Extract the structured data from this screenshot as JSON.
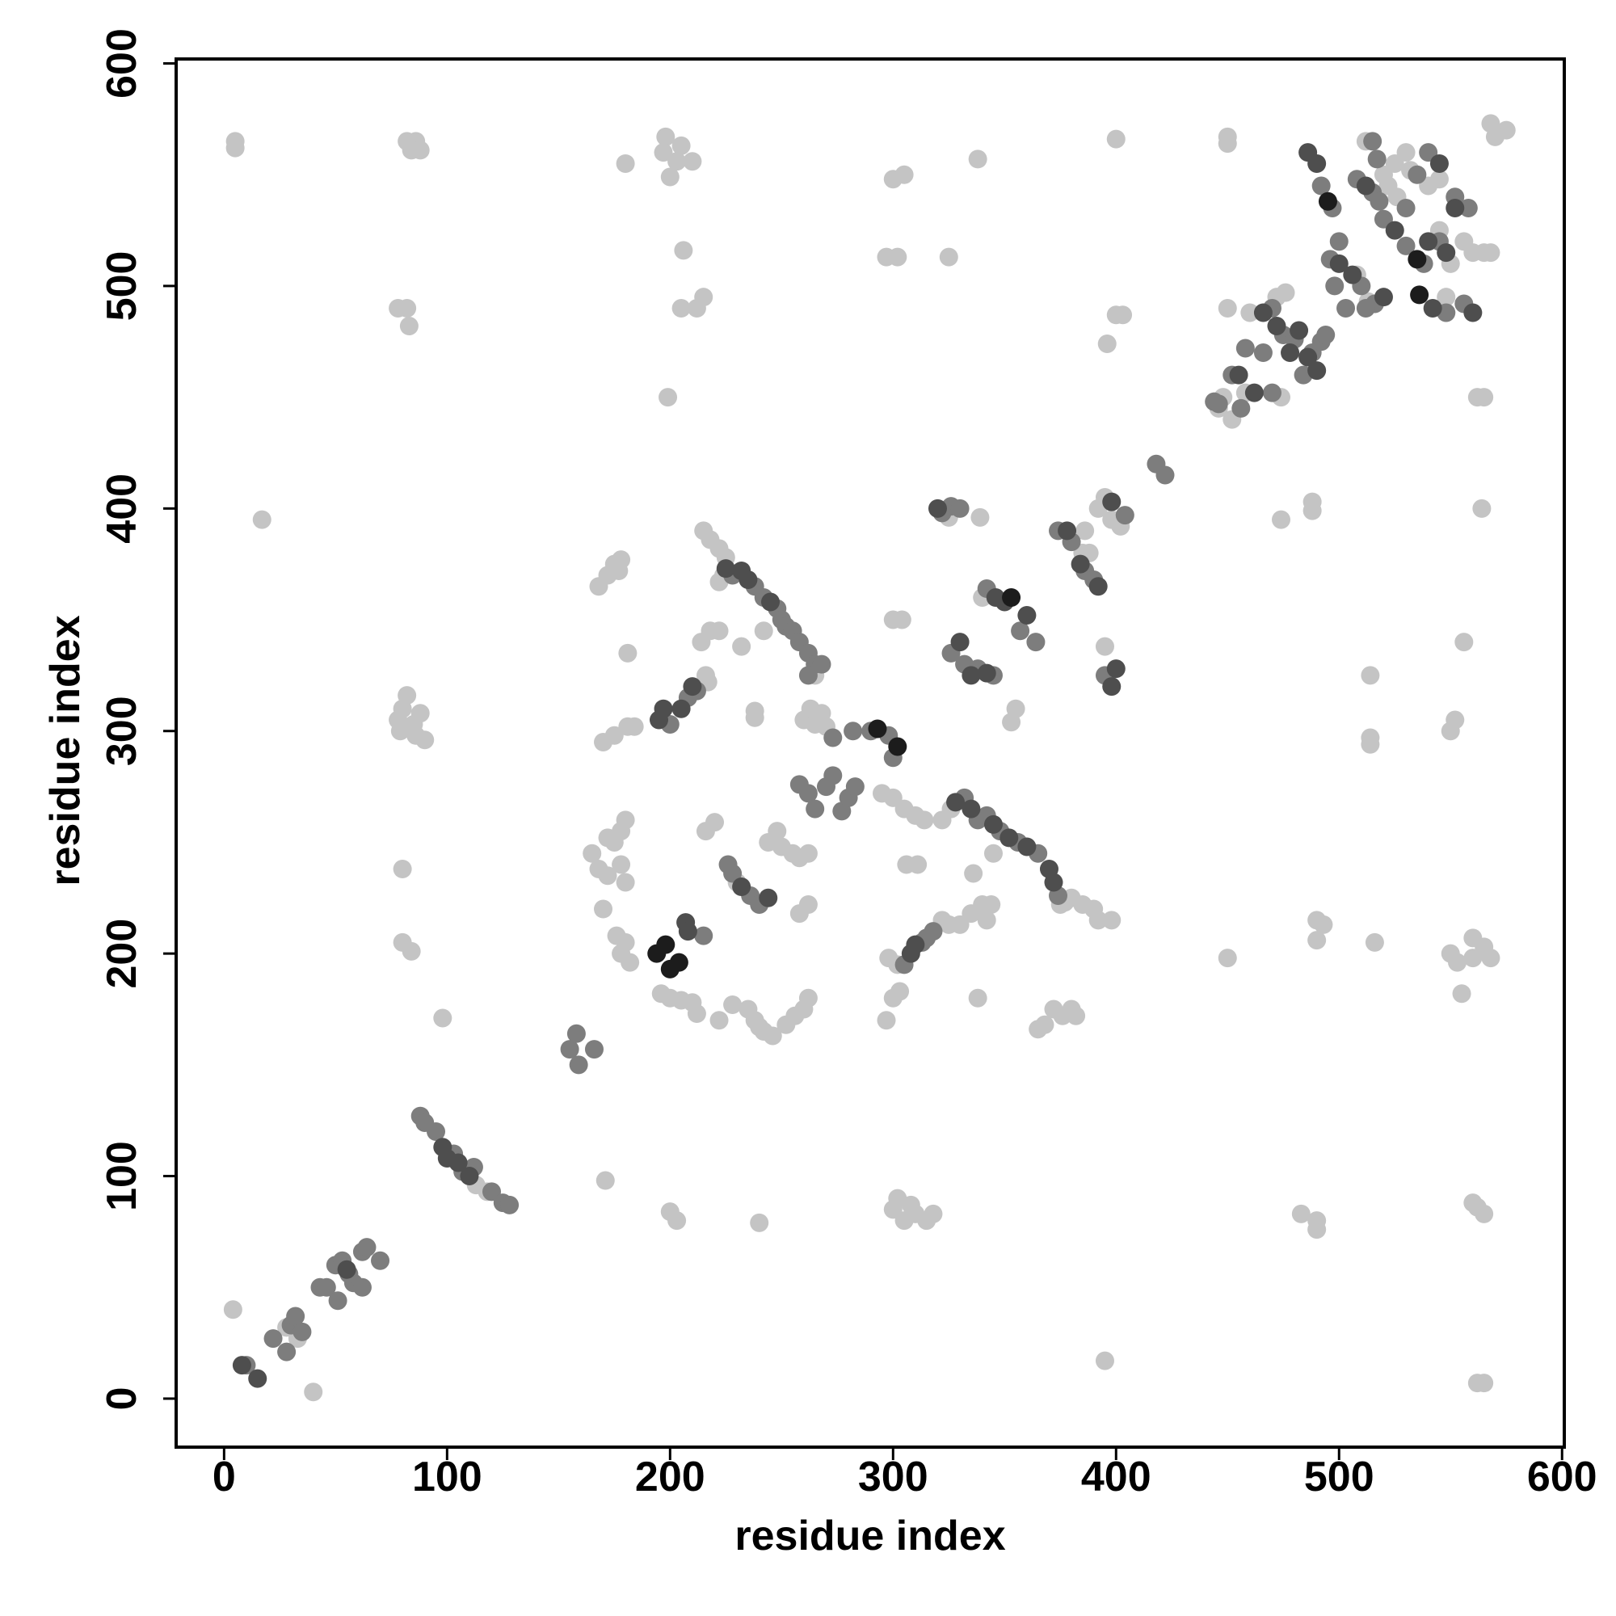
{
  "chart_data": {
    "type": "scatter",
    "xlabel": "residue index",
    "ylabel": "residue index",
    "xlim": [
      -21.5,
      601
    ],
    "ylim": [
      -21.8,
      602
    ],
    "xticks": [
      0,
      100,
      200,
      300,
      400,
      500,
      600
    ],
    "yticks": [
      0,
      100,
      200,
      300,
      400,
      500,
      600
    ],
    "series": [
      {
        "color": "#c4c4c4",
        "x": [
          4,
          40,
          28,
          33,
          113,
          118,
          5,
          5,
          82,
          86,
          84,
          88,
          17,
          78,
          82,
          83,
          78,
          80,
          82,
          85,
          88,
          90,
          86,
          79,
          80,
          80,
          84,
          98,
          180,
          198,
          197,
          203,
          210,
          200,
          205,
          206,
          205,
          212,
          215,
          199,
          171,
          200,
          203,
          240,
          300,
          305,
          310,
          315,
          302,
          308,
          318,
          300,
          305,
          297,
          302,
          325,
          338,
          400,
          400,
          403,
          396,
          450,
          450,
          395,
          483,
          490,
          490,
          568,
          575,
          570,
          562,
          565,
          562,
          565,
          560,
          565,
          562,
          564,
          488,
          488,
          474,
          450,
          490,
          490,
          493,
          516,
          514,
          514,
          514,
          550,
          552,
          556,
          550,
          553,
          555,
          560,
          560,
          565,
          568,
          339,
          300,
          304,
          355,
          353,
          395,
          170,
          175,
          181,
          184,
          181,
          168,
          172,
          175,
          178,
          177,
          165,
          168,
          172,
          175,
          178,
          180,
          172,
          180,
          178,
          170,
          176,
          178,
          180,
          182,
          196,
          200,
          205,
          210,
          212,
          222,
          228,
          235,
          238,
          242,
          246,
          252,
          256,
          260,
          262,
          240,
          216,
          220,
          238,
          238,
          232,
          242,
          244,
          248,
          250,
          255,
          258,
          262,
          258,
          262,
          260,
          263,
          265,
          270,
          268,
          265,
          215,
          218,
          222,
          225,
          222,
          224,
          214,
          218,
          222,
          217,
          295,
          300,
          305,
          310,
          314,
          311,
          306,
          297,
          300,
          303,
          298,
          302,
          322,
          325,
          330,
          335,
          340,
          342,
          338,
          344,
          322,
          326,
          336,
          345,
          365,
          368,
          372,
          376,
          380,
          382,
          380,
          385,
          390,
          392,
          398,
          375,
          340,
          392,
          395,
          398,
          402,
          386,
          385,
          450,
          448,
          452,
          446,
          525,
          520,
          532,
          530,
          545,
          540,
          512,
          565,
          568,
          560,
          556,
          548,
          548,
          216,
          230,
          325,
          377,
          388,
          513,
          460,
          472,
          476,
          474,
          458,
          522,
          526,
          545,
          550,
          508
        ],
        "values": [
          40,
          3,
          32,
          27,
          96,
          93,
          565,
          562,
          565,
          565,
          561,
          561,
          395,
          490,
          490,
          482,
          305,
          310,
          316,
          303,
          308,
          296,
          298,
          300,
          238,
          205,
          201,
          171,
          555,
          567,
          560,
          556,
          556,
          549,
          563,
          516,
          490,
          490,
          495,
          450,
          98,
          84,
          80,
          79,
          85,
          80,
          83,
          80,
          90,
          87,
          83,
          548,
          550,
          513,
          513,
          513,
          557,
          566,
          487,
          487,
          474,
          567,
          564,
          17,
          83,
          80,
          76,
          573,
          570,
          567,
          7,
          7,
          86,
          83,
          88,
          450,
          450,
          400,
          403,
          399,
          395,
          198,
          215,
          206,
          213,
          205,
          325,
          297,
          294,
          300,
          305,
          340,
          200,
          196,
          182,
          207,
          198,
          203,
          198,
          396,
          350,
          350,
          310,
          304,
          338,
          295,
          298,
          302,
          302,
          335,
          365,
          370,
          375,
          377,
          372,
          245,
          238,
          252,
          250,
          255,
          260,
          235,
          232,
          240,
          220,
          208,
          200,
          205,
          196,
          182,
          180,
          179,
          178,
          173,
          170,
          177,
          175,
          170,
          165,
          163,
          168,
          172,
          175,
          180,
          167,
          255,
          259,
          306,
          309,
          338,
          345,
          250,
          255,
          248,
          245,
          243,
          245,
          218,
          222,
          305,
          310,
          303,
          302,
          308,
          325,
          390,
          386,
          382,
          378,
          367,
          370,
          340,
          345,
          345,
          322,
          272,
          270,
          265,
          262,
          260,
          240,
          240,
          170,
          180,
          183,
          198,
          195,
          215,
          213,
          213,
          218,
          222,
          215,
          180,
          222,
          260,
          265,
          236,
          245,
          166,
          168,
          175,
          172,
          175,
          172,
          225,
          222,
          220,
          215,
          215,
          222,
          360,
          400,
          405,
          395,
          392,
          390,
          380,
          490,
          450,
          440,
          445,
          555,
          550,
          552,
          560,
          548,
          545,
          565,
          515,
          515,
          515,
          520,
          488,
          495,
          325,
          232,
          396,
          223,
          380,
          493,
          488,
          495,
          497,
          450,
          452,
          545,
          540,
          525,
          510,
          505
        ]
      },
      {
        "color": "#7d7d7d",
        "x": [
          10,
          22,
          28,
          30,
          32,
          35,
          43,
          46,
          50,
          51,
          53,
          58,
          62,
          62,
          64,
          70,
          56,
          88,
          90,
          95,
          103,
          107,
          120,
          125,
          128,
          112,
          155,
          159,
          158,
          166,
          215,
          200,
          208,
          212,
          228,
          238,
          242,
          248,
          250,
          252,
          255,
          258,
          262,
          265,
          268,
          262,
          226,
          228,
          236,
          240,
          258,
          262,
          265,
          270,
          273,
          277,
          280,
          283,
          273,
          282,
          290,
          298,
          300,
          305,
          313,
          315,
          318,
          322,
          326,
          330,
          326,
          332,
          338,
          345,
          332,
          338,
          342,
          348,
          356,
          365,
          374,
          342,
          357,
          364,
          374,
          380,
          386,
          390,
          395,
          404,
          418,
          422,
          458,
          470,
          475,
          480,
          484,
          488,
          492,
          494,
          496,
          503,
          510,
          498,
          492,
          497,
          500,
          508,
          515,
          518,
          520,
          530,
          538,
          545,
          548,
          556,
          540,
          535,
          558,
          552,
          516,
          452,
          456,
          444,
          446,
          470,
          466,
          515,
          517,
          530,
          512
        ],
        "values": [
          15,
          27,
          21,
          33,
          37,
          30,
          50,
          50,
          60,
          44,
          62,
          52,
          50,
          66,
          68,
          62,
          56,
          127,
          124,
          120,
          110,
          102,
          93,
          88,
          87,
          104,
          157,
          150,
          164,
          157,
          208,
          303,
          315,
          318,
          370,
          365,
          360,
          355,
          350,
          347,
          345,
          340,
          335,
          330,
          330,
          325,
          240,
          236,
          226,
          222,
          276,
          272,
          265,
          275,
          280,
          264,
          270,
          275,
          297,
          300,
          300,
          298,
          288,
          195,
          205,
          207,
          210,
          398,
          401,
          400,
          335,
          330,
          328,
          325,
          270,
          260,
          262,
          255,
          250,
          245,
          226,
          364,
          345,
          340,
          390,
          385,
          372,
          368,
          325,
          397,
          420,
          415,
          472,
          490,
          478,
          476,
          460,
          470,
          475,
          478,
          512,
          490,
          500,
          500,
          545,
          535,
          520,
          548,
          542,
          538,
          530,
          518,
          510,
          520,
          488,
          492,
          560,
          550,
          535,
          540,
          492,
          460,
          445,
          448,
          447,
          452,
          470,
          565,
          557,
          535,
          490
        ]
      },
      {
        "color": "#4e4e4e",
        "x": [
          8,
          15,
          55,
          98,
          100,
          110,
          105,
          207,
          208,
          195,
          197,
          205,
          210,
          225,
          232,
          235,
          245,
          232,
          244,
          308,
          310,
          320,
          330,
          335,
          342,
          328,
          335,
          345,
          352,
          360,
          370,
          372,
          346,
          350,
          360,
          378,
          384,
          392,
          398,
          400,
          398,
          455,
          462,
          466,
          472,
          478,
          482,
          486,
          490,
          500,
          506,
          486,
          490,
          512,
          525,
          540,
          548,
          542,
          560,
          545,
          552,
          520
        ],
        "values": [
          15,
          9,
          58,
          113,
          108,
          100,
          106,
          214,
          210,
          305,
          310,
          310,
          320,
          373,
          372,
          368,
          358,
          230,
          225,
          200,
          204,
          400,
          340,
          325,
          326,
          268,
          265,
          258,
          252,
          248,
          238,
          232,
          360,
          358,
          352,
          390,
          375,
          365,
          320,
          328,
          403,
          460,
          452,
          488,
          482,
          470,
          480,
          468,
          462,
          510,
          505,
          560,
          555,
          545,
          525,
          520,
          515,
          490,
          488,
          555,
          535,
          495
        ]
      },
      {
        "color": "#1c1c1c",
        "x": [
          194,
          198,
          200,
          204,
          293,
          302,
          353,
          495,
          535,
          536
        ],
        "values": [
          200,
          204,
          193,
          196,
          301,
          293,
          360,
          538,
          512,
          496
        ]
      }
    ]
  }
}
